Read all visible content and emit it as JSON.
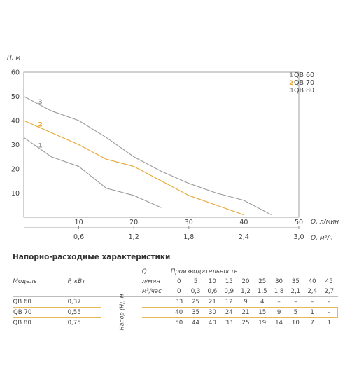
{
  "chart_data": {
    "type": "line",
    "xlabel": "Q, л/мин",
    "x2label": "Q, м³/ч",
    "ylabel": "H, м",
    "xlim": [
      0,
      50
    ],
    "ylim": [
      0,
      60
    ],
    "x_ticks": [
      "10",
      "20",
      "30",
      "40",
      "50"
    ],
    "x_ticks_values": [
      10,
      20,
      30,
      40,
      50
    ],
    "x2_ticks": [
      "0,6",
      "1,2",
      "1,8",
      "2,4",
      "3,0"
    ],
    "x2_ticks_values": [
      10,
      20,
      30,
      40,
      50
    ],
    "y_ticks": [
      "10",
      "20",
      "30",
      "40",
      "50",
      "60"
    ],
    "y_ticks_values": [
      10,
      20,
      30,
      40,
      50,
      60
    ],
    "legend_position": "top-right",
    "series": [
      {
        "name": "QB 60",
        "number": "1",
        "color": "#9b9b9b",
        "x": [
          0,
          5,
          10,
          15,
          20,
          25
        ],
        "y": [
          33,
          25,
          21,
          12,
          9,
          4
        ]
      },
      {
        "name": "QB 70",
        "number": "2",
        "color": "#e8a630",
        "x": [
          0,
          5,
          10,
          15,
          20,
          25,
          30,
          35,
          40
        ],
        "y": [
          40,
          35,
          30,
          24,
          21,
          15,
          9,
          5,
          1
        ]
      },
      {
        "name": "QB 80",
        "number": "3",
        "color": "#9b9b9b",
        "x": [
          0,
          5,
          10,
          15,
          20,
          25,
          30,
          35,
          40,
          45
        ],
        "y": [
          50,
          44,
          40,
          33,
          25,
          19,
          14,
          10,
          7,
          1
        ]
      }
    ]
  },
  "table": {
    "title": "Напорно-расходные характеристики",
    "model_header": "Модель",
    "power_header": "P, кВт",
    "q_label": "Q",
    "productivity_label": "Производительность",
    "unit_lmin": "л/мин",
    "unit_m3h": "м³/час",
    "head_label": "Напор (H), м",
    "flow_lmin": [
      "0",
      "5",
      "10",
      "15",
      "20",
      "25",
      "30",
      "35",
      "40",
      "45"
    ],
    "flow_m3h": [
      "0",
      "0,3",
      "0,6",
      "0,9",
      "1,2",
      "1,5",
      "1,8",
      "2,1",
      "2,4",
      "2,7"
    ],
    "rows": [
      {
        "model": "QB 60",
        "power": "0,37",
        "values": [
          "33",
          "25",
          "21",
          "12",
          "9",
          "4",
          "–",
          "–",
          "–",
          "–"
        ]
      },
      {
        "model": "QB 70",
        "power": "0,55",
        "values": [
          "40",
          "35",
          "30",
          "24",
          "21",
          "15",
          "9",
          "5",
          "1",
          "–"
        ]
      },
      {
        "model": "QB 80",
        "power": "0,75",
        "values": [
          "50",
          "44",
          "40",
          "33",
          "25",
          "19",
          "14",
          "10",
          "7",
          "1"
        ]
      }
    ]
  }
}
